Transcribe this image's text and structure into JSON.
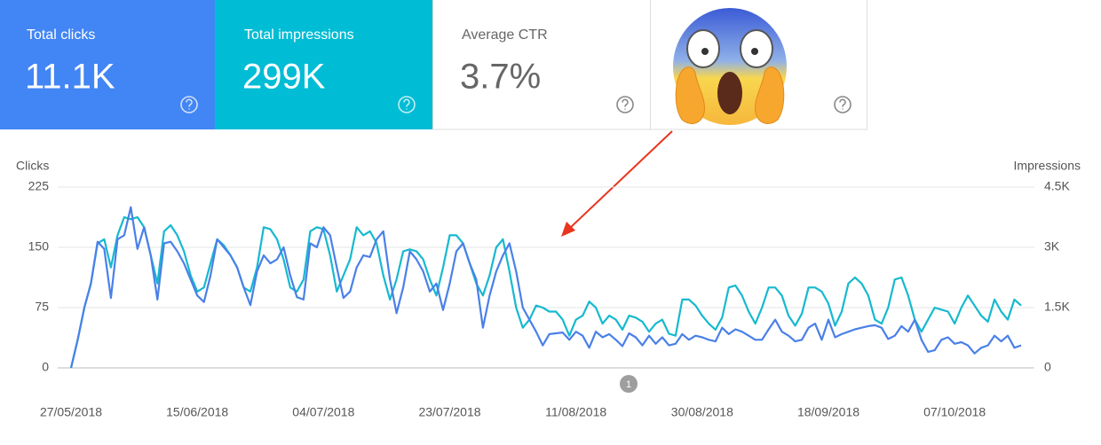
{
  "cards": [
    {
      "label": "Total clicks",
      "value": "11.1K"
    },
    {
      "label": "Total impressions",
      "value": "299K"
    },
    {
      "label": "Average CTR",
      "value": "3.7%"
    }
  ],
  "chart_data": {
    "type": "line",
    "y_label": "Clicks",
    "y2_label": "Impressions",
    "categories": [
      "27/05/2018",
      null,
      null,
      null,
      null,
      null,
      null,
      null,
      null,
      null,
      null,
      null,
      null,
      null,
      null,
      null,
      null,
      null,
      null,
      "15/06/2018",
      null,
      null,
      null,
      null,
      null,
      null,
      null,
      null,
      null,
      null,
      null,
      null,
      null,
      null,
      null,
      null,
      null,
      null,
      "04/07/2018",
      null,
      null,
      null,
      null,
      null,
      null,
      null,
      null,
      null,
      null,
      null,
      null,
      null,
      null,
      null,
      null,
      null,
      null,
      "23/07/2018",
      null,
      null,
      null,
      null,
      null,
      null,
      null,
      null,
      null,
      null,
      null,
      null,
      null,
      null,
      null,
      null,
      null,
      null,
      "11/08/2018",
      null,
      null,
      null,
      null,
      null,
      null,
      null,
      null,
      null,
      null,
      null,
      null,
      null,
      null,
      null,
      null,
      null,
      null,
      "30/08/2018",
      null,
      null,
      null,
      null,
      null,
      null,
      null,
      null,
      null,
      null,
      null,
      null,
      null,
      null,
      null,
      null,
      null,
      null,
      "18/09/2018",
      null,
      null,
      null,
      null,
      null,
      null,
      null,
      null,
      null,
      null,
      null,
      null,
      null,
      null,
      null,
      null,
      null,
      null,
      "07/10/2018",
      null,
      null,
      null,
      null,
      null,
      null,
      null,
      null,
      null,
      null
    ],
    "series": [
      {
        "name": "Clicks",
        "color": "#4a80e8",
        "values": [
          0,
          35,
          75,
          105,
          157,
          148,
          87,
          160,
          165,
          200,
          148,
          175,
          140,
          85,
          155,
          157,
          145,
          130,
          110,
          90,
          82,
          115,
          160,
          150,
          140,
          125,
          100,
          78,
          120,
          140,
          130,
          135,
          150,
          115,
          88,
          85,
          155,
          150,
          175,
          165,
          125,
          87,
          95,
          125,
          140,
          138,
          160,
          170,
          110,
          68,
          100,
          145,
          135,
          120,
          95,
          105,
          72,
          105,
          145,
          155,
          130,
          110,
          50,
          90,
          120,
          140,
          155,
          120,
          75,
          60,
          45,
          28,
          42,
          43,
          44,
          35,
          45,
          40,
          25,
          45,
          38,
          42,
          35,
          27,
          43,
          38,
          28,
          40,
          30,
          38,
          28,
          30,
          42,
          35,
          40,
          38,
          35,
          33,
          50,
          42,
          48,
          45,
          40,
          35,
          35,
          48,
          60,
          45,
          40,
          33,
          35,
          50,
          55,
          35,
          60,
          38,
          42,
          45,
          48,
          50,
          52,
          53,
          50,
          36,
          40,
          52,
          45,
          60,
          35,
          20,
          22,
          35,
          38,
          30,
          32,
          28,
          18,
          25,
          28,
          40,
          33,
          40,
          25,
          28
        ]
      },
      {
        "name": "Impressions",
        "color": "#16b9cf",
        "axis": "y2",
        "values": [
          0,
          700,
          1500,
          2100,
          3100,
          3200,
          2500,
          3300,
          3750,
          3700,
          3750,
          3500,
          2800,
          2100,
          3400,
          3550,
          3300,
          2900,
          2300,
          1900,
          2000,
          2600,
          3200,
          3050,
          2800,
          2500,
          2000,
          1900,
          2500,
          3500,
          3450,
          3200,
          2700,
          2000,
          1900,
          2200,
          3400,
          3500,
          3450,
          2800,
          1900,
          2300,
          2700,
          3500,
          3300,
          3400,
          3100,
          2300,
          1700,
          2200,
          2900,
          2950,
          2900,
          2700,
          2200,
          1800,
          2500,
          3300,
          3300,
          3100,
          2600,
          2100,
          1800,
          2300,
          3000,
          3200,
          2400,
          1500,
          1000,
          1200,
          1550,
          1500,
          1400,
          1400,
          1200,
          800,
          1200,
          1300,
          1650,
          1500,
          1100,
          1300,
          1200,
          950,
          1300,
          1250,
          1150,
          900,
          1100,
          1200,
          850,
          800,
          1700,
          1700,
          1550,
          1300,
          1100,
          950,
          1250,
          2000,
          2050,
          1800,
          1400,
          1100,
          1500,
          2000,
          2000,
          1800,
          1300,
          1050,
          1350,
          2000,
          2000,
          1900,
          1600,
          1050,
          1400,
          2100,
          2250,
          2100,
          1800,
          1200,
          1100,
          1500,
          2200,
          2250,
          1800,
          1200,
          900,
          1200,
          1500,
          1450,
          1400,
          1100,
          1500,
          1800,
          1550,
          1300,
          1150,
          1700,
          1400,
          1200,
          1700,
          1550
        ]
      }
    ],
    "ylim": [
      0,
      225
    ],
    "yticks": [
      0,
      75,
      150,
      225
    ],
    "y2lim": [
      0,
      4500
    ],
    "y2ticks": [
      0,
      {
        "value": 1500,
        "label": "1.5K"
      },
      {
        "value": 3000,
        "label": "3K"
      },
      {
        "value": 4500,
        "label": "4.5K"
      }
    ],
    "grid": true,
    "annotations": [
      {
        "label": "1",
        "x": "12/08/2018"
      }
    ]
  }
}
